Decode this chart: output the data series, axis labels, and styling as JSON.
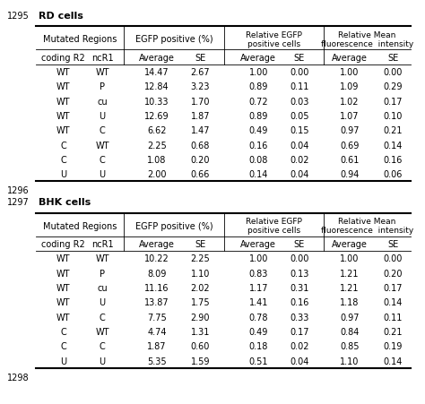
{
  "fig_width": 4.74,
  "fig_height": 4.52,
  "rd_title": "RD cells",
  "bhk_title": "BHK cells",
  "ref1": "1295",
  "ref2": "1296",
  "ref3": "1297",
  "ref4": "1298",
  "header2": [
    "coding R2",
    "ncR1",
    "Average",
    "SE",
    "Average",
    "SE",
    "Average",
    "SE"
  ],
  "rd_data": [
    [
      "WT",
      "WT",
      "14.47",
      "2.67",
      "1.00",
      "0.00",
      "1.00",
      "0.00"
    ],
    [
      "WT",
      "P",
      "12.84",
      "3.23",
      "0.89",
      "0.11",
      "1.09",
      "0.29"
    ],
    [
      "WT",
      "cu",
      "10.33",
      "1.70",
      "0.72",
      "0.03",
      "1.02",
      "0.17"
    ],
    [
      "WT",
      "U",
      "12.69",
      "1.87",
      "0.89",
      "0.05",
      "1.07",
      "0.10"
    ],
    [
      "WT",
      "C",
      "6.62",
      "1.47",
      "0.49",
      "0.15",
      "0.97",
      "0.21"
    ],
    [
      "C",
      "WT",
      "2.25",
      "0.68",
      "0.16",
      "0.04",
      "0.69",
      "0.14"
    ],
    [
      "C",
      "C",
      "1.08",
      "0.20",
      "0.08",
      "0.02",
      "0.61",
      "0.16"
    ],
    [
      "U",
      "U",
      "2.00",
      "0.66",
      "0.14",
      "0.04",
      "0.94",
      "0.06"
    ]
  ],
  "bhk_data": [
    [
      "WT",
      "WT",
      "10.22",
      "2.25",
      "1.00",
      "0.00",
      "1.00",
      "0.00"
    ],
    [
      "WT",
      "P",
      "8.09",
      "1.10",
      "0.83",
      "0.13",
      "1.21",
      "0.20"
    ],
    [
      "WT",
      "cu",
      "11.16",
      "2.02",
      "1.17",
      "0.31",
      "1.21",
      "0.17"
    ],
    [
      "WT",
      "U",
      "13.87",
      "1.75",
      "1.41",
      "0.16",
      "1.18",
      "0.14"
    ],
    [
      "WT",
      "C",
      "7.75",
      "2.90",
      "0.78",
      "0.33",
      "0.97",
      "0.11"
    ],
    [
      "C",
      "WT",
      "4.74",
      "1.31",
      "0.49",
      "0.17",
      "0.84",
      "0.21"
    ],
    [
      "C",
      "C",
      "1.87",
      "0.60",
      "0.18",
      "0.02",
      "0.85",
      "0.19"
    ],
    [
      "U",
      "U",
      "5.35",
      "1.59",
      "0.51",
      "0.04",
      "1.10",
      "0.14"
    ]
  ],
  "bg_color": "#ffffff",
  "line_color": "#000000",
  "text_color": "#000000",
  "fontsize_data": 7.0,
  "fontsize_header": 7.0,
  "fontsize_title": 8.0,
  "fontsize_ref": 7.0
}
